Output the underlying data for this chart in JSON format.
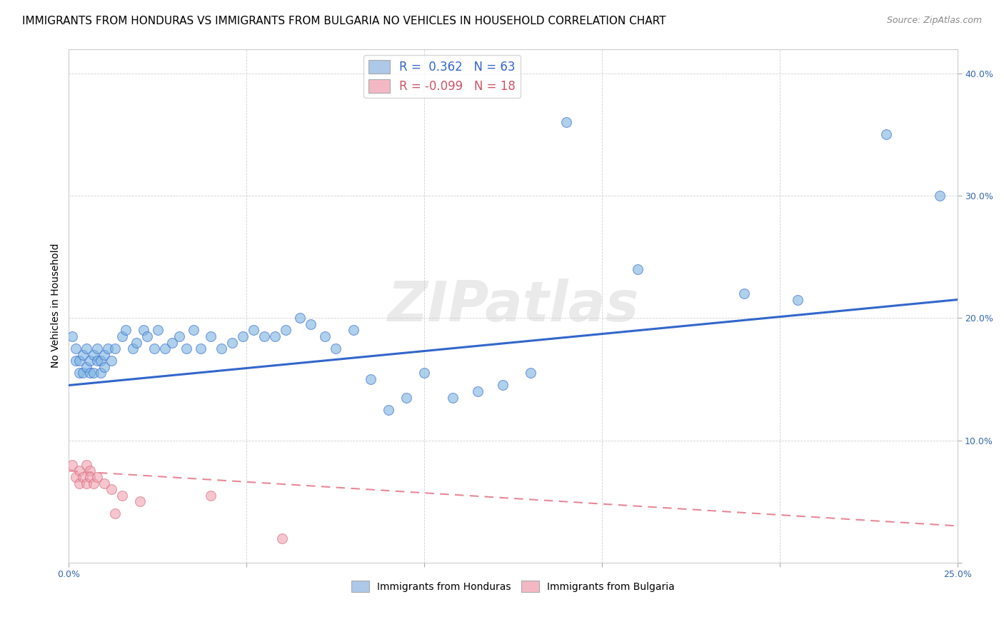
{
  "title": "IMMIGRANTS FROM HONDURAS VS IMMIGRANTS FROM BULGARIA NO VEHICLES IN HOUSEHOLD CORRELATION CHART",
  "source": "Source: ZipAtlas.com",
  "ylabel": "No Vehicles in Household",
  "xlim": [
    0.0,
    0.25
  ],
  "ylim": [
    0.0,
    0.42
  ],
  "watermark": "ZIPatlas",
  "legend_honduras": {
    "R": "0.362",
    "N": "63",
    "color": "#adc8e8"
  },
  "legend_bulgaria": {
    "R": "-0.099",
    "N": "18",
    "color": "#f4b8c4"
  },
  "honduras_color": "#7ab3e0",
  "bulgaria_color": "#f0a0b0",
  "honduras_line_color": "#3366cc",
  "bulgaria_line_color": "#e88898",
  "title_fontsize": 11,
  "source_fontsize": 9,
  "axis_fontsize": 9,
  "label_fontsize": 10,
  "honduras_scatter": [
    [
      0.001,
      0.185
    ],
    [
      0.002,
      0.175
    ],
    [
      0.002,
      0.165
    ],
    [
      0.003,
      0.155
    ],
    [
      0.003,
      0.165
    ],
    [
      0.004,
      0.17
    ],
    [
      0.004,
      0.155
    ],
    [
      0.005,
      0.175
    ],
    [
      0.005,
      0.16
    ],
    [
      0.006,
      0.165
    ],
    [
      0.006,
      0.155
    ],
    [
      0.007,
      0.17
    ],
    [
      0.007,
      0.155
    ],
    [
      0.008,
      0.175
    ],
    [
      0.008,
      0.165
    ],
    [
      0.009,
      0.155
    ],
    [
      0.009,
      0.165
    ],
    [
      0.01,
      0.16
    ],
    [
      0.01,
      0.17
    ],
    [
      0.011,
      0.175
    ],
    [
      0.012,
      0.165
    ],
    [
      0.013,
      0.175
    ],
    [
      0.015,
      0.185
    ],
    [
      0.016,
      0.19
    ],
    [
      0.018,
      0.175
    ],
    [
      0.019,
      0.18
    ],
    [
      0.021,
      0.19
    ],
    [
      0.022,
      0.185
    ],
    [
      0.024,
      0.175
    ],
    [
      0.025,
      0.19
    ],
    [
      0.027,
      0.175
    ],
    [
      0.029,
      0.18
    ],
    [
      0.031,
      0.185
    ],
    [
      0.033,
      0.175
    ],
    [
      0.035,
      0.19
    ],
    [
      0.037,
      0.175
    ],
    [
      0.04,
      0.185
    ],
    [
      0.043,
      0.175
    ],
    [
      0.046,
      0.18
    ],
    [
      0.049,
      0.185
    ],
    [
      0.052,
      0.19
    ],
    [
      0.055,
      0.185
    ],
    [
      0.058,
      0.185
    ],
    [
      0.061,
      0.19
    ],
    [
      0.065,
      0.2
    ],
    [
      0.068,
      0.195
    ],
    [
      0.072,
      0.185
    ],
    [
      0.075,
      0.175
    ],
    [
      0.08,
      0.19
    ],
    [
      0.085,
      0.15
    ],
    [
      0.09,
      0.125
    ],
    [
      0.095,
      0.135
    ],
    [
      0.1,
      0.155
    ],
    [
      0.108,
      0.135
    ],
    [
      0.115,
      0.14
    ],
    [
      0.122,
      0.145
    ],
    [
      0.13,
      0.155
    ],
    [
      0.14,
      0.36
    ],
    [
      0.16,
      0.24
    ],
    [
      0.19,
      0.22
    ],
    [
      0.205,
      0.215
    ],
    [
      0.23,
      0.35
    ],
    [
      0.245,
      0.3
    ]
  ],
  "bulgaria_scatter": [
    [
      0.001,
      0.08
    ],
    [
      0.002,
      0.07
    ],
    [
      0.003,
      0.075
    ],
    [
      0.003,
      0.065
    ],
    [
      0.004,
      0.07
    ],
    [
      0.005,
      0.08
    ],
    [
      0.005,
      0.065
    ],
    [
      0.006,
      0.075
    ],
    [
      0.006,
      0.07
    ],
    [
      0.007,
      0.065
    ],
    [
      0.008,
      0.07
    ],
    [
      0.01,
      0.065
    ],
    [
      0.012,
      0.06
    ],
    [
      0.013,
      0.04
    ],
    [
      0.015,
      0.055
    ],
    [
      0.02,
      0.05
    ],
    [
      0.04,
      0.055
    ],
    [
      0.06,
      0.02
    ]
  ],
  "honduras_line": [
    0.0,
    0.145,
    0.25,
    0.215
  ],
  "bulgaria_line": [
    0.0,
    0.075,
    0.25,
    0.03
  ]
}
